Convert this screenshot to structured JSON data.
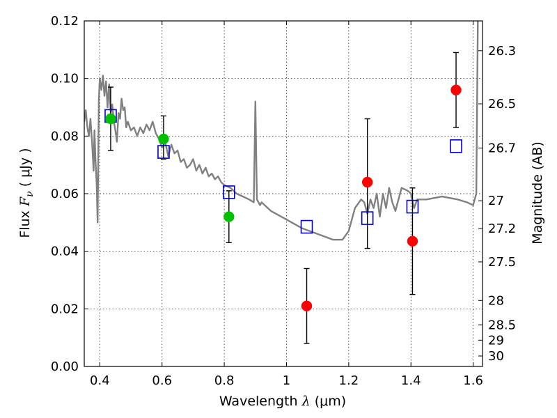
{
  "chart_data": {
    "type": "scatter",
    "xlabel": {
      "prefix": "Wavelength  ",
      "symbol": "λ",
      "unit": " (μm)"
    },
    "ylabel": {
      "prefix": "Flux  ",
      "symbol": "F",
      "subscript": "ν",
      "unit": "  ( μJy )"
    },
    "y2label": "Magnitude (AB)",
    "xlim": [
      0.35,
      1.63
    ],
    "ylim": [
      0.0,
      0.12
    ],
    "grid": true,
    "x_ticks": [
      {
        "value": 0.4,
        "label": "0.4"
      },
      {
        "value": 0.6,
        "label": "0.6"
      },
      {
        "value": 0.8,
        "label": "0.8"
      },
      {
        "value": 1.0,
        "label": "1"
      },
      {
        "value": 1.2,
        "label": "1.2"
      },
      {
        "value": 1.4,
        "label": "1.4"
      },
      {
        "value": 1.6,
        "label": "1.6"
      }
    ],
    "y_ticks": [
      {
        "value": 0.0,
        "label": "0.00"
      },
      {
        "value": 0.02,
        "label": "0.02"
      },
      {
        "value": 0.04,
        "label": "0.04"
      },
      {
        "value": 0.06,
        "label": "0.06"
      },
      {
        "value": 0.08,
        "label": "0.08"
      },
      {
        "value": 0.1,
        "label": "0.10"
      },
      {
        "value": 0.12,
        "label": "0.12"
      }
    ],
    "mag_ticks": [
      {
        "mag": 26.3,
        "label": "26.3"
      },
      {
        "mag": 26.5,
        "label": "26.5"
      },
      {
        "mag": 26.7,
        "label": "26.7"
      },
      {
        "mag": 27.0,
        "label": "27"
      },
      {
        "mag": 27.2,
        "label": "27.2"
      },
      {
        "mag": 27.5,
        "label": "27.5"
      },
      {
        "mag": 28.0,
        "label": "28"
      },
      {
        "mag": 28.5,
        "label": "28.5"
      },
      {
        "mag": 29.0,
        "label": "29"
      },
      {
        "mag": 30.0,
        "label": "30"
      }
    ],
    "series": [
      {
        "kind": "line",
        "color": "#808080",
        "x": [
          0.35,
          0.355,
          0.36,
          0.365,
          0.37,
          0.375,
          0.38,
          0.383,
          0.386,
          0.39,
          0.393,
          0.397,
          0.4,
          0.405,
          0.41,
          0.415,
          0.42,
          0.425,
          0.43,
          0.435,
          0.44,
          0.445,
          0.45,
          0.455,
          0.46,
          0.465,
          0.47,
          0.475,
          0.48,
          0.485,
          0.49,
          0.5,
          0.51,
          0.52,
          0.53,
          0.54,
          0.55,
          0.56,
          0.57,
          0.58,
          0.59,
          0.6,
          0.61,
          0.62,
          0.63,
          0.64,
          0.65,
          0.66,
          0.67,
          0.68,
          0.69,
          0.7,
          0.71,
          0.72,
          0.73,
          0.74,
          0.75,
          0.76,
          0.77,
          0.78,
          0.79,
          0.8,
          0.82,
          0.84,
          0.86,
          0.88,
          0.895,
          0.9,
          0.905,
          0.91,
          0.915,
          0.92,
          0.95,
          1.0,
          1.05,
          1.1,
          1.15,
          1.18,
          1.2,
          1.22,
          1.24,
          1.25,
          1.26,
          1.27,
          1.28,
          1.29,
          1.3,
          1.31,
          1.32,
          1.33,
          1.34,
          1.35,
          1.37,
          1.39,
          1.4,
          1.41,
          1.42,
          1.45,
          1.5,
          1.55,
          1.58,
          1.6,
          1.605,
          1.61,
          1.615,
          1.62,
          1.63
        ],
        "y": [
          0.085,
          0.089,
          0.083,
          0.08,
          0.086,
          0.078,
          0.068,
          0.082,
          0.072,
          0.063,
          0.05,
          0.093,
          0.1,
          0.096,
          0.101,
          0.094,
          0.099,
          0.09,
          0.098,
          0.088,
          0.091,
          0.085,
          0.082,
          0.078,
          0.088,
          0.086,
          0.093,
          0.089,
          0.09,
          0.083,
          0.085,
          0.082,
          0.083,
          0.08,
          0.083,
          0.081,
          0.084,
          0.082,
          0.085,
          0.081,
          0.079,
          0.076,
          0.078,
          0.073,
          0.077,
          0.074,
          0.075,
          0.071,
          0.072,
          0.069,
          0.07,
          0.072,
          0.068,
          0.07,
          0.067,
          0.069,
          0.066,
          0.067,
          0.065,
          0.066,
          0.064,
          0.063,
          0.062,
          0.06,
          0.059,
          0.058,
          0.057,
          0.092,
          0.058,
          0.057,
          0.056,
          0.057,
          0.054,
          0.051,
          0.048,
          0.046,
          0.044,
          0.044,
          0.047,
          0.055,
          0.058,
          0.057,
          0.053,
          0.058,
          0.055,
          0.06,
          0.052,
          0.06,
          0.055,
          0.062,
          0.057,
          0.054,
          0.062,
          0.061,
          0.06,
          0.055,
          0.058,
          0.058,
          0.059,
          0.058,
          0.057,
          0.056,
          0.058,
          0.06,
          0.12,
          0.126,
          0.13
        ]
      },
      {
        "kind": "points",
        "marker": "circle",
        "color": "#00c000",
        "points": [
          {
            "x": 0.435,
            "y": 0.086,
            "ylo": 0.075,
            "yhi": 0.097
          },
          {
            "x": 0.605,
            "y": 0.079,
            "ylo": 0.072,
            "yhi": 0.087
          },
          {
            "x": 0.815,
            "y": 0.052,
            "ylo": 0.043,
            "yhi": 0.061
          }
        ]
      },
      {
        "kind": "points",
        "marker": "circle",
        "color": "#ff0000",
        "points": [
          {
            "x": 1.065,
            "y": 0.021,
            "ylo": 0.008,
            "yhi": 0.034
          },
          {
            "x": 1.26,
            "y": 0.064,
            "ylo": 0.041,
            "yhi": 0.086
          },
          {
            "x": 1.405,
            "y": 0.0435,
            "ylo": 0.025,
            "yhi": 0.062
          },
          {
            "x": 1.545,
            "y": 0.096,
            "ylo": 0.083,
            "yhi": 0.109
          }
        ]
      },
      {
        "kind": "points",
        "marker": "square",
        "color": "#0000cc",
        "points": [
          {
            "x": 0.435,
            "y": 0.087
          },
          {
            "x": 0.605,
            "y": 0.0745
          },
          {
            "x": 0.815,
            "y": 0.0605
          },
          {
            "x": 1.065,
            "y": 0.0485
          },
          {
            "x": 1.26,
            "y": 0.0515
          },
          {
            "x": 1.405,
            "y": 0.0555
          },
          {
            "x": 1.545,
            "y": 0.0765
          }
        ]
      }
    ]
  }
}
